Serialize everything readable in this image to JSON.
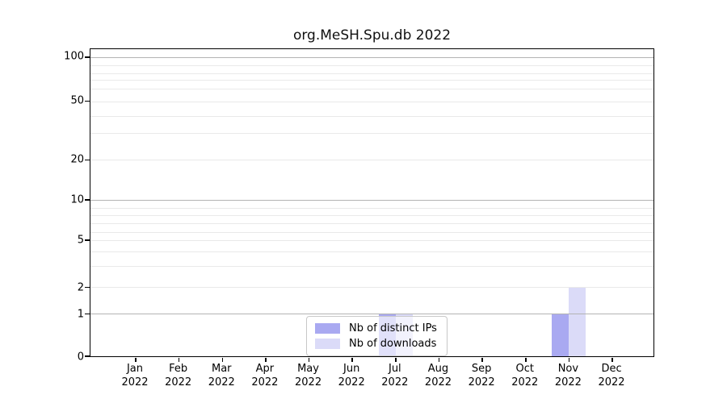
{
  "chart_data": {
    "type": "bar",
    "title": "org.MeSH.Spu.db 2022",
    "categories": [
      "Jan 2022",
      "Feb 2022",
      "Mar 2022",
      "Apr 2022",
      "May 2022",
      "Jun 2022",
      "Jul 2022",
      "Aug 2022",
      "Sep 2022",
      "Oct 2022",
      "Nov 2022",
      "Dec 2022"
    ],
    "series": [
      {
        "name": "Nb of distinct IPs",
        "color": "#a9a9f1",
        "values": [
          0,
          0,
          0,
          0,
          0,
          0,
          1,
          0,
          0,
          0,
          1,
          0
        ]
      },
      {
        "name": "Nb of downloads",
        "color": "#dbdbf8",
        "values": [
          0,
          0,
          0,
          0,
          0,
          0,
          1,
          0,
          0,
          0,
          2,
          0
        ]
      }
    ],
    "xlabel": "",
    "ylabel": "",
    "yscale": "log-like",
    "ylim": [
      0,
      115
    ],
    "y_ticks": [
      0,
      1,
      2,
      5,
      10,
      20,
      50,
      100
    ],
    "y_major_gridlines": [
      1,
      10,
      100
    ],
    "y_minor_gridlines": [
      2,
      3,
      4,
      5,
      6,
      7,
      8,
      9,
      20,
      30,
      40,
      50,
      60,
      70,
      80,
      90
    ],
    "grid": true,
    "legend_position": "lower center",
    "colors": {
      "bar_distinct_ips": "#a9a9f1",
      "bar_downloads": "#dbdbf8",
      "major_grid": "#b3b3b3",
      "minor_grid": "#e9e9e9",
      "axis": "#000000"
    }
  }
}
